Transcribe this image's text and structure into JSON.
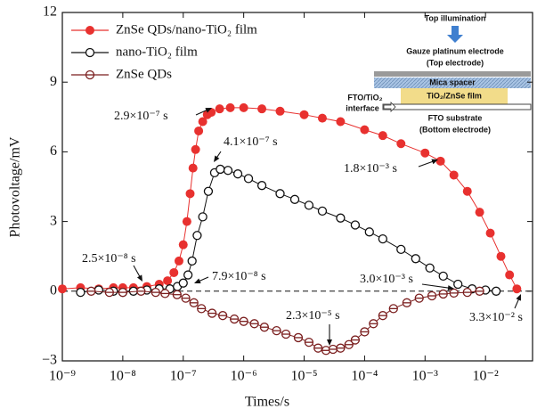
{
  "chart_data": {
    "type": "line",
    "xlabel": "Times/s",
    "ylabel": "Photovoltage/mV",
    "xscale": "log",
    "xlim": [
      1e-09,
      0.06
    ],
    "ylim": [
      -3,
      12
    ],
    "xticks": [
      {
        "value": 1e-09,
        "label": "10⁻⁹"
      },
      {
        "value": 1e-08,
        "label": "10⁻⁸"
      },
      {
        "value": 1e-07,
        "label": "10⁻⁷"
      },
      {
        "value": 1e-06,
        "label": "10⁻⁶"
      },
      {
        "value": 1e-05,
        "label": "10⁻⁵"
      },
      {
        "value": 0.0001,
        "label": "10⁻⁴"
      },
      {
        "value": 0.001,
        "label": "10⁻³"
      },
      {
        "value": 0.01,
        "label": "10⁻²"
      }
    ],
    "yticks": [
      {
        "value": -3,
        "label": "−3"
      },
      0,
      3,
      6,
      9,
      12
    ],
    "hline": 0,
    "legend": "upper left",
    "series": [
      {
        "name": "ZnSe QDs/nano-TiO₂ film",
        "color": "#e8312f",
        "marker": "filled",
        "x": [
          1e-09,
          2e-09,
          4e-09,
          7e-09,
          1e-08,
          1.5e-08,
          2.5e-08,
          4e-08,
          5.5e-08,
          7e-08,
          8.5e-08,
          1e-07,
          1.15e-07,
          1.3e-07,
          1.45e-07,
          1.6e-07,
          1.8e-07,
          2.1e-07,
          2.5e-07,
          2.9e-07,
          4e-07,
          6e-07,
          1e-06,
          2e-06,
          4e-06,
          1e-05,
          2e-05,
          4e-05,
          0.0001,
          0.0002,
          0.0004,
          0.001,
          0.0018,
          0.003,
          0.005,
          0.008,
          0.012,
          0.018,
          0.025,
          0.033
        ],
        "values": [
          0.1,
          0.15,
          0.1,
          0.15,
          0.15,
          0.15,
          0.2,
          0.3,
          0.45,
          0.8,
          1.3,
          2.0,
          3.0,
          4.2,
          5.3,
          6.1,
          6.9,
          7.3,
          7.6,
          7.7,
          7.85,
          7.9,
          7.9,
          7.85,
          7.75,
          7.6,
          7.45,
          7.3,
          6.95,
          6.7,
          6.35,
          5.95,
          5.6,
          5.0,
          4.3,
          3.4,
          2.5,
          1.5,
          0.7,
          0.1
        ]
      },
      {
        "name": "nano-TiO₂ film",
        "color": "#111111",
        "marker": "open",
        "x": [
          2e-09,
          4e-09,
          7e-09,
          1e-08,
          1.5e-08,
          2.5e-08,
          4e-08,
          6e-08,
          8e-08,
          1e-07,
          1.2e-07,
          1.4e-07,
          1.7e-07,
          2.1e-07,
          2.6e-07,
          3.3e-07,
          4.1e-07,
          5.5e-07,
          8e-07,
          1.2e-06,
          2e-06,
          4e-06,
          7e-06,
          1.2e-05,
          2e-05,
          4e-05,
          7e-05,
          0.00012,
          0.0002,
          0.0004,
          0.0007,
          0.0012,
          0.002,
          0.0035,
          0.006,
          0.01,
          0.015
        ],
        "values": [
          -0.05,
          0.05,
          0.0,
          -0.05,
          0.0,
          0.05,
          0.1,
          0.1,
          0.2,
          0.35,
          0.7,
          1.3,
          2.4,
          3.2,
          4.3,
          5.1,
          5.25,
          5.2,
          5.05,
          4.85,
          4.55,
          4.2,
          3.95,
          3.7,
          3.45,
          3.15,
          2.85,
          2.55,
          2.25,
          1.8,
          1.4,
          1.0,
          0.65,
          0.3,
          0.1,
          0.05,
          0.0
        ]
      },
      {
        "name": "ZnSe QDs",
        "color": "#7b1f1f",
        "marker": "half",
        "x": [
          3e-09,
          6e-09,
          1e-08,
          2e-08,
          3.5e-08,
          5e-08,
          7.9e-08,
          1.1e-07,
          1.5e-07,
          2e-07,
          3e-07,
          4.5e-07,
          7e-07,
          1e-06,
          1.5e-06,
          2.2e-06,
          3.5e-06,
          5e-06,
          8e-06,
          1.2e-05,
          1.7e-05,
          2.3e-05,
          3e-05,
          4e-05,
          5.5e-05,
          7e-05,
          0.0001,
          0.00014,
          0.0002,
          0.0003,
          0.0005,
          0.0008,
          0.0013,
          0.002,
          0.003,
          0.005,
          0.008
        ],
        "values": [
          0.0,
          -0.05,
          -0.05,
          0.0,
          -0.05,
          -0.1,
          -0.15,
          -0.3,
          -0.5,
          -0.75,
          -0.95,
          -1.05,
          -1.2,
          -1.3,
          -1.4,
          -1.55,
          -1.7,
          -1.85,
          -2.0,
          -2.2,
          -2.45,
          -2.55,
          -2.5,
          -2.45,
          -2.3,
          -2.1,
          -1.75,
          -1.4,
          -1.05,
          -0.75,
          -0.5,
          -0.3,
          -0.2,
          -0.12,
          -0.08,
          -0.05,
          0.0
        ]
      }
    ],
    "annotations": [
      "2.9×10⁻⁷ s",
      "4.1×10⁻⁷ s",
      "1.8×10⁻³ s",
      "2.5×10⁻⁸ s",
      "7.9×10⁻⁸ s",
      "3.0×10⁻³ s",
      "2.3×10⁻⁵ s",
      "3.3×10⁻² s"
    ],
    "inset": {
      "top_illumination": "Top illumination",
      "electrode": "Gauze platinum electrode",
      "electrode_note": "(Top electrode)",
      "spacer": "Mica spacer",
      "film": "TiO₂/ZnSe film",
      "interface_1": "FTO/TiO₂",
      "interface_2": "interface",
      "substrate": "FTO substrate",
      "substrate_note": "(Bottom electrode)"
    }
  }
}
